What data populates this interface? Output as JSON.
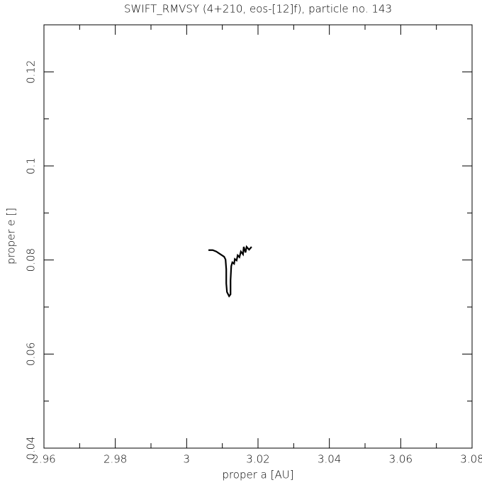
{
  "chart_data": {
    "type": "line",
    "title": "SWIFT_RMVSY (4+210, eos-[12]f), particle no. 143",
    "x_label": "proper a [AU]",
    "y_label": "proper e []",
    "xlim": [
      2.96,
      3.08
    ],
    "ylim": [
      0.04,
      0.13
    ],
    "xticks": [
      2.96,
      2.98,
      3,
      3.02,
      3.04,
      3.06,
      3.08
    ],
    "yticks": [
      0.04,
      0.06,
      0.08,
      0.1,
      0.12
    ],
    "xminorticks": [
      2.97,
      2.99,
      3.01,
      3.03,
      3.05,
      3.07
    ],
    "yminorticks": [
      0.05,
      0.07,
      0.09,
      0.11,
      0.13
    ],
    "series": [
      {
        "color": "#000000",
        "x": [
          3.0061,
          3.0073,
          3.0083,
          3.0093,
          3.0105,
          3.0109,
          3.0111,
          3.0111,
          3.0113,
          3.0119,
          3.0123,
          3.0123,
          3.0125,
          3.0128,
          3.0133,
          3.0135,
          3.014,
          3.0143,
          3.0148,
          3.0152,
          3.0158,
          3.016,
          3.0165,
          3.0168,
          3.0175,
          3.0182
        ],
        "values": [
          0.0821,
          0.0821,
          0.0818,
          0.0813,
          0.0807,
          0.0801,
          0.078,
          0.075,
          0.0732,
          0.0723,
          0.0727,
          0.0757,
          0.0787,
          0.0795,
          0.0792,
          0.0802,
          0.0799,
          0.081,
          0.0806,
          0.0818,
          0.0812,
          0.0828,
          0.0816,
          0.0828,
          0.0822,
          0.0828
        ]
      }
    ]
  }
}
